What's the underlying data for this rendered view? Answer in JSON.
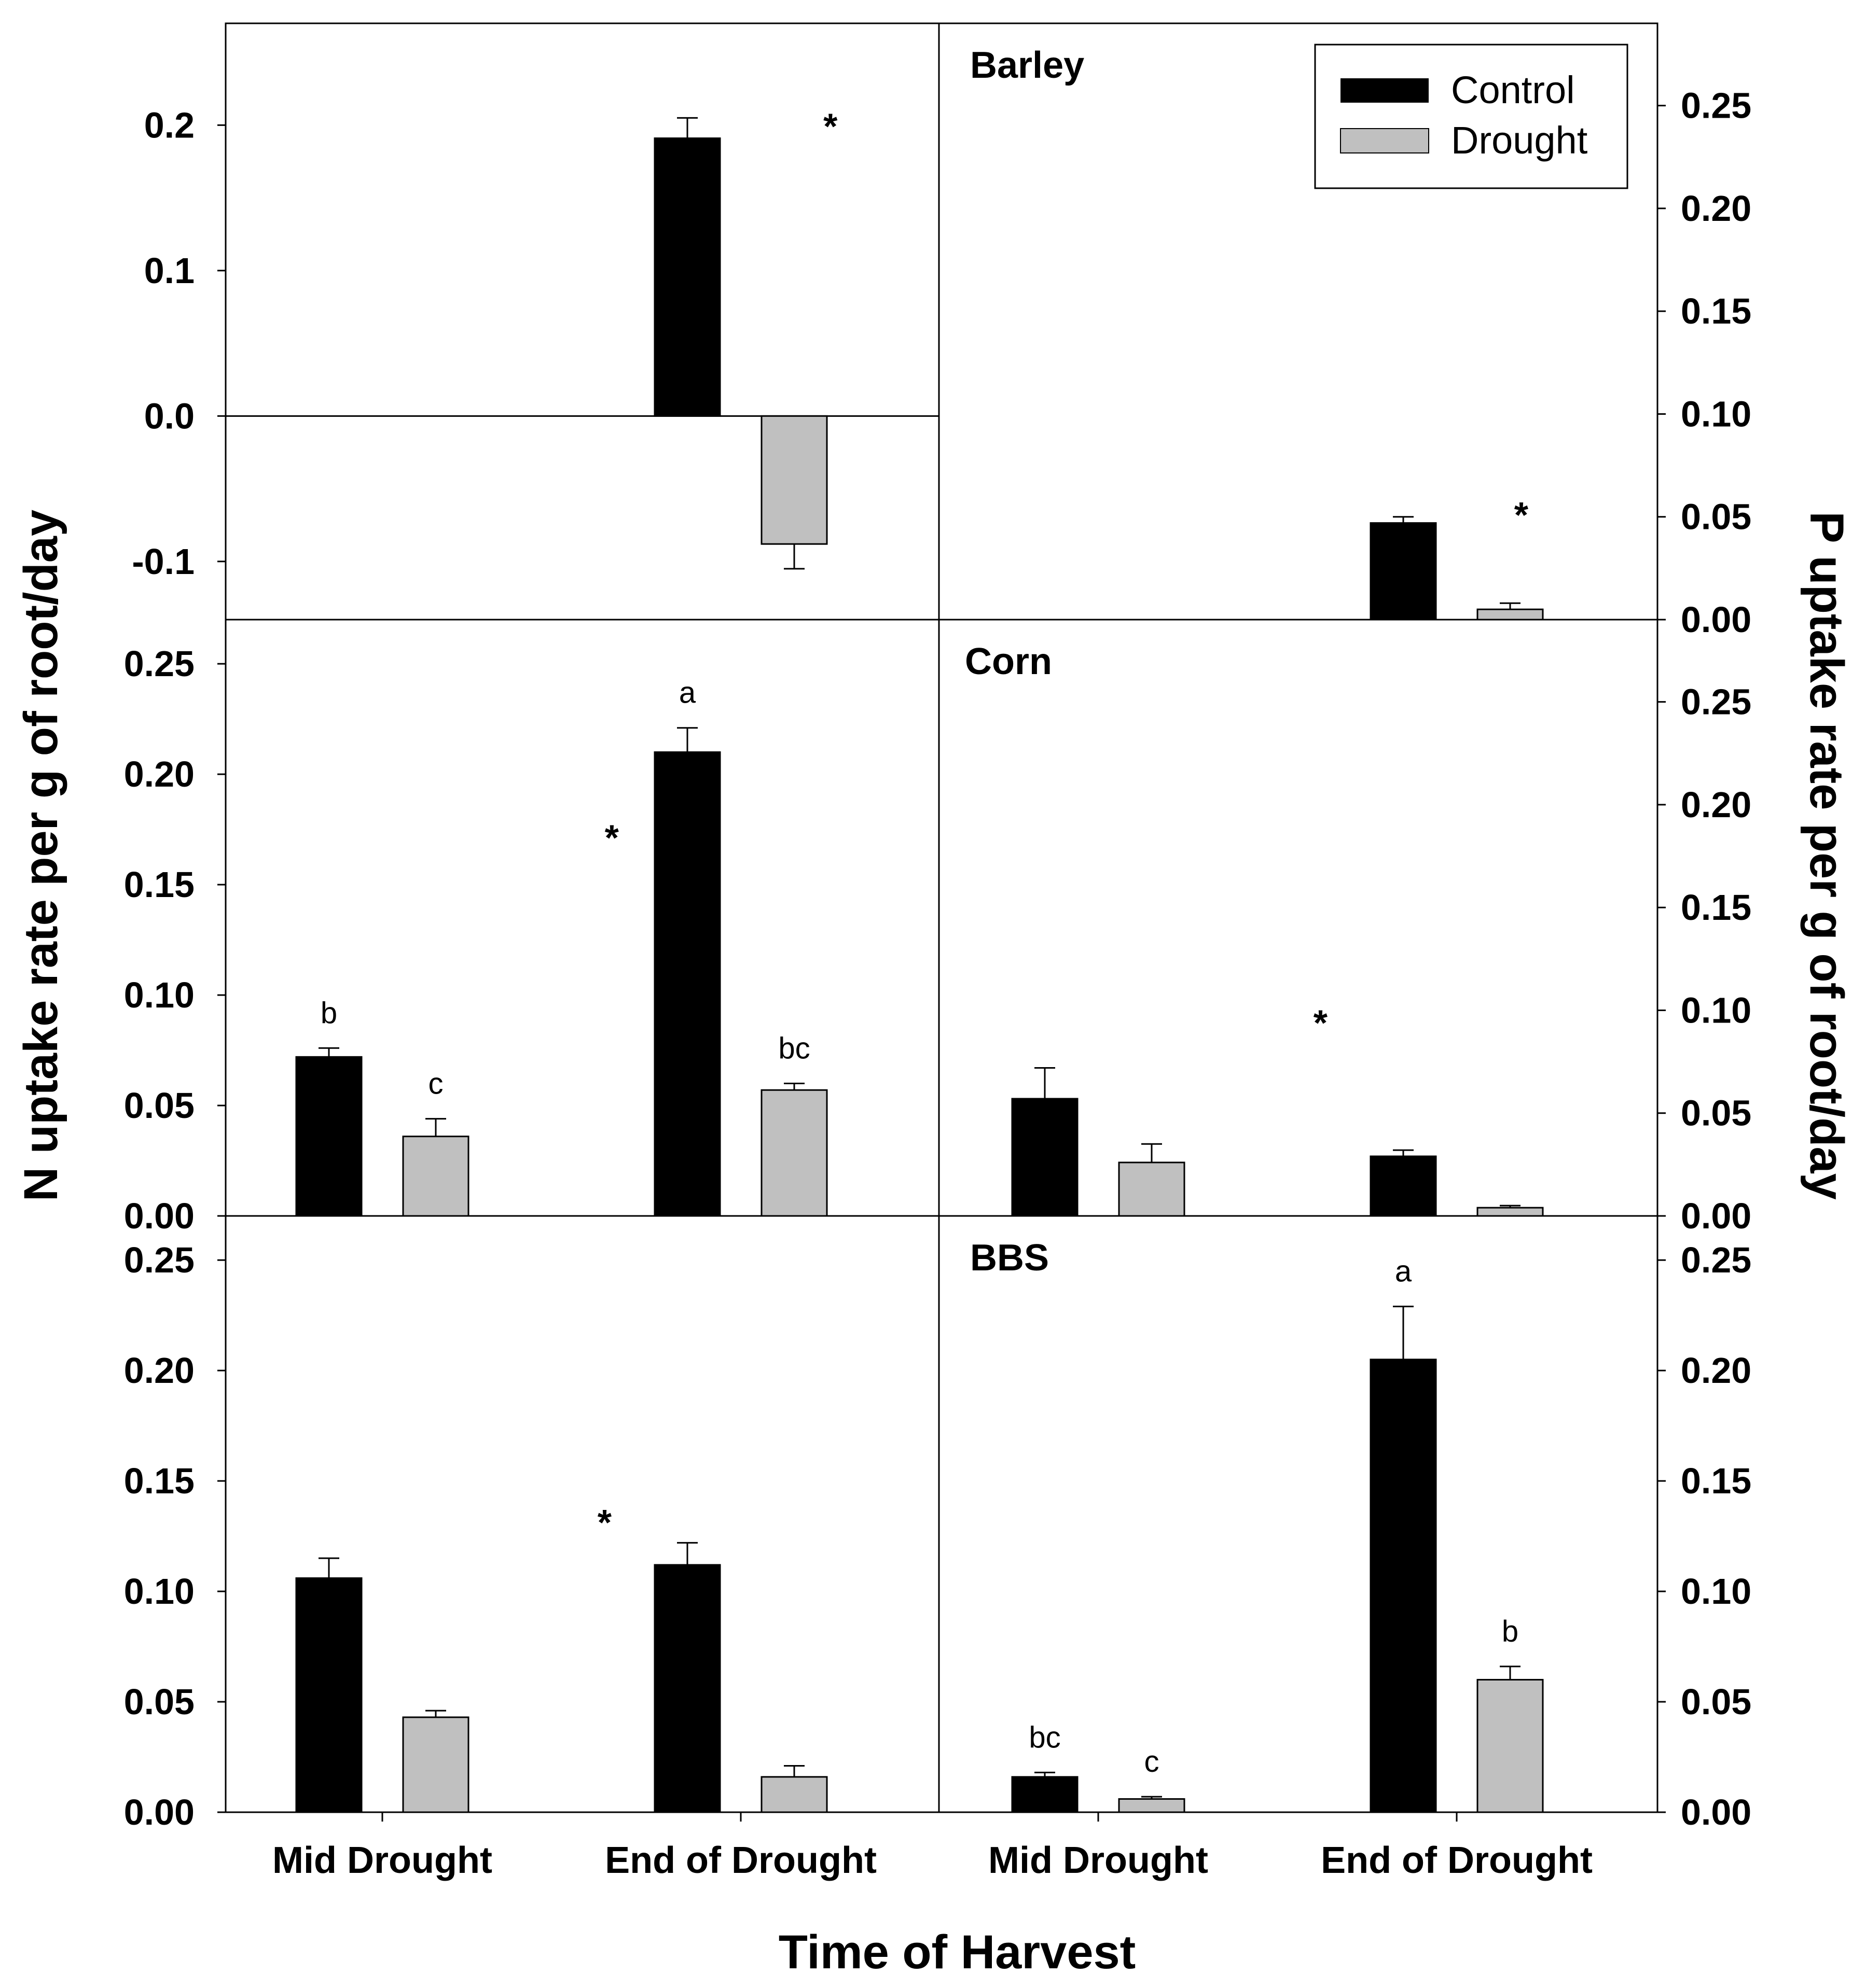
{
  "colors": {
    "control": "#000000",
    "drought": "#c0c0c0",
    "frame": "#000000"
  },
  "axes": {
    "xlabel": "Time of Harvest",
    "ylabel_left": "N uptake rate per g of root/day",
    "ylabel_right": "P uptake rate per g of root/day"
  },
  "legend": {
    "items": [
      {
        "label": "Control"
      },
      {
        "label": "Drought"
      }
    ]
  },
  "chart_data": [
    {
      "type": "bar",
      "panel": "Barley",
      "nutrient": "N",
      "title": "",
      "categories": [
        "Mid Drought",
        "End of Drought"
      ],
      "ylim": [
        -0.14,
        0.27
      ],
      "yticks": [
        "0.2",
        "0.1",
        "0.0",
        "-0.1"
      ],
      "yticks_values": [
        0.2,
        0.1,
        0.0,
        -0.1
      ],
      "series": [
        {
          "name": "Control",
          "values": [
            null,
            0.191
          ],
          "errors": [
            null,
            0.014
          ],
          "letters": [
            "",
            ""
          ]
        },
        {
          "name": "Drought",
          "values": [
            null,
            -0.088
          ],
          "errors": [
            null,
            0.017
          ],
          "letters": [
            "",
            ""
          ]
        }
      ],
      "annotations": [
        {
          "text": "*",
          "x": 1.25,
          "y": 0.205
        }
      ]
    },
    {
      "type": "bar",
      "panel": "Barley",
      "nutrient": "P",
      "title": "Barley",
      "categories": [
        "Mid Drought",
        "End of Drought"
      ],
      "ylim": [
        0,
        0.29
      ],
      "yticks": [
        "0.00",
        "0.05",
        "0.10",
        "0.15",
        "0.20",
        "0.25"
      ],
      "yticks_values": [
        0,
        0.05,
        0.1,
        0.15,
        0.2,
        0.25
      ],
      "series": [
        {
          "name": "Control",
          "values": [
            null,
            0.047
          ],
          "errors": [
            null,
            0.003
          ],
          "letters": [
            "",
            ""
          ]
        },
        {
          "name": "Drought",
          "values": [
            null,
            0.005
          ],
          "errors": [
            null,
            0.003
          ],
          "letters": [
            "",
            ""
          ]
        }
      ],
      "annotations": [
        {
          "text": "*",
          "x": 1.18,
          "y": 0.055
        }
      ]
    },
    {
      "type": "bar",
      "panel": "Corn",
      "nutrient": "N",
      "title": "",
      "categories": [
        "Mid Drought",
        "End of Drought"
      ],
      "ylim": [
        0,
        0.27
      ],
      "yticks": [
        "0.00",
        "0.05",
        "0.10",
        "0.15",
        "0.20",
        "0.25"
      ],
      "yticks_values": [
        0,
        0.05,
        0.1,
        0.15,
        0.2,
        0.25
      ],
      "series": [
        {
          "name": "Control",
          "values": [
            0.072,
            0.21
          ],
          "errors": [
            0.004,
            0.011
          ],
          "letters": [
            "b",
            "a"
          ]
        },
        {
          "name": "Drought",
          "values": [
            0.036,
            0.057
          ],
          "errors": [
            0.008,
            0.003
          ],
          "letters": [
            "c",
            "bc"
          ]
        }
      ],
      "annotations": [
        {
          "text": "*",
          "x": 0.64,
          "y": 0.175
        }
      ]
    },
    {
      "type": "bar",
      "panel": "Corn",
      "nutrient": "P",
      "title": "Corn",
      "categories": [
        "Mid Drought",
        "End of Drought"
      ],
      "ylim": [
        0,
        0.29
      ],
      "yticks": [
        "0.00",
        "0.05",
        "0.10",
        "0.15",
        "0.20",
        "0.25"
      ],
      "yticks_values": [
        0,
        0.05,
        0.1,
        0.15,
        0.2,
        0.25
      ],
      "series": [
        {
          "name": "Control",
          "values": [
            0.057,
            0.029
          ],
          "errors": [
            0.015,
            0.003
          ],
          "letters": [
            "",
            ""
          ]
        },
        {
          "name": "Drought",
          "values": [
            0.026,
            0.004
          ],
          "errors": [
            0.009,
            0.001
          ],
          "letters": [
            "",
            ""
          ]
        }
      ],
      "annotations": [
        {
          "text": "*",
          "x": 0.62,
          "y": 0.098
        }
      ]
    },
    {
      "type": "bar",
      "panel": "BBS",
      "nutrient": "N",
      "title": "",
      "categories": [
        "Mid Drought",
        "End of Drought"
      ],
      "ylim": [
        0,
        0.27
      ],
      "yticks": [
        "0.00",
        "0.05",
        "0.10",
        "0.15",
        "0.20",
        "0.25"
      ],
      "yticks_values": [
        0,
        0.05,
        0.1,
        0.15,
        0.2,
        0.25
      ],
      "series": [
        {
          "name": "Control",
          "values": [
            0.106,
            0.112
          ],
          "errors": [
            0.009,
            0.01
          ],
          "letters": [
            "",
            ""
          ]
        },
        {
          "name": "Drought",
          "values": [
            0.043,
            0.016
          ],
          "errors": [
            0.003,
            0.005
          ],
          "letters": [
            "",
            ""
          ]
        }
      ],
      "annotations": [
        {
          "text": "*",
          "x": 0.62,
          "y": 0.135
        }
      ]
    },
    {
      "type": "bar",
      "panel": "BBS",
      "nutrient": "P",
      "title": "BBS",
      "categories": [
        "Mid Drought",
        "End of Drought"
      ],
      "ylim": [
        0,
        0.27
      ],
      "yticks": [
        "0.00",
        "0.05",
        "0.10",
        "0.15",
        "0.20",
        "0.25"
      ],
      "yticks_values": [
        0,
        0.05,
        0.1,
        0.15,
        0.2,
        0.25
      ],
      "series": [
        {
          "name": "Control",
          "values": [
            0.016,
            0.205
          ],
          "errors": [
            0.002,
            0.024
          ],
          "letters": [
            "bc",
            "a"
          ]
        },
        {
          "name": "Drought",
          "values": [
            0.006,
            0.06
          ],
          "errors": [
            0.001,
            0.006
          ],
          "letters": [
            "c",
            "b"
          ]
        }
      ],
      "annotations": []
    }
  ]
}
